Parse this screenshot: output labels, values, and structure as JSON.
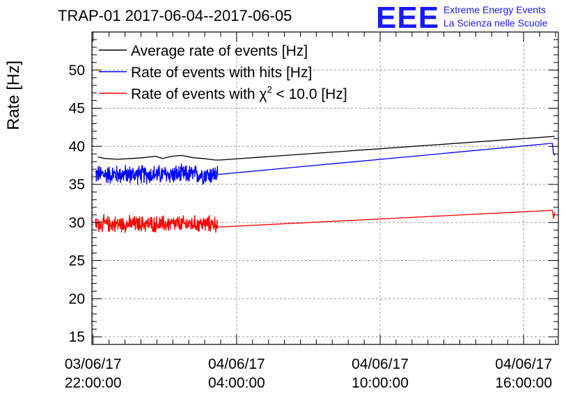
{
  "chart_data": {
    "type": "line",
    "title": "TRAP-01 2017-06-04--2017-06-05",
    "logo": {
      "mark": "EEE",
      "line1": "Extreme Energy Events",
      "line2": "La Scienza nelle Scuole"
    },
    "ylabel": "Rate [Hz]",
    "xlabel": "",
    "ylim": [
      14,
      55
    ],
    "yticks": [
      15,
      20,
      25,
      30,
      35,
      40,
      45,
      50
    ],
    "x_range_hours": [
      21.95,
      17.45
    ],
    "xticks": [
      {
        "hour": 22,
        "date": "03/06/17",
        "time": "22:00:00"
      },
      {
        "hour": 28,
        "date": "04/06/17",
        "time": "04:00:00"
      },
      {
        "hour": 34,
        "date": "04/06/17",
        "time": "10:00:00"
      },
      {
        "hour": 40,
        "date": "04/06/17",
        "time": "16:00:00"
      }
    ],
    "grid": true,
    "legend_position": "top-left",
    "series": [
      {
        "name_main": "Average rate of events [Hz]",
        "color": "#000000",
        "points": [
          [
            22.2,
            38.6
          ],
          [
            22.5,
            38.4
          ],
          [
            23.0,
            38.3
          ],
          [
            23.6,
            38.4
          ],
          [
            24.1,
            38.5
          ],
          [
            24.6,
            38.7
          ],
          [
            24.9,
            38.4
          ],
          [
            25.3,
            38.7
          ],
          [
            25.7,
            38.8
          ],
          [
            26.2,
            38.5
          ],
          [
            26.6,
            38.4
          ],
          [
            27.1,
            38.2
          ],
          [
            27.3,
            38.2
          ],
          [
            41.3,
            41.3
          ]
        ]
      },
      {
        "name_main": "Rate of events with hits [Hz]",
        "color": "#0000ff",
        "noisy_segment": {
          "x_start": 22.1,
          "x_end": 27.2,
          "center": 36.3,
          "amplitude": 1.5,
          "samples": 420
        },
        "points": [
          [
            27.2,
            36.3
          ],
          [
            41.2,
            40.4
          ],
          [
            41.25,
            39.0
          ],
          [
            41.3,
            38.8
          ]
        ]
      },
      {
        "name_main": "Rate of events with χ² < 10.0 [Hz]",
        "name_prefix": "Rate of events with χ",
        "name_sup": "2",
        "name_suffix": " < 10.0 [Hz]",
        "color": "#ff0000",
        "noisy_segment": {
          "x_start": 22.1,
          "x_end": 27.2,
          "center": 29.8,
          "amplitude": 1.3,
          "samples": 420
        },
        "points": [
          [
            27.2,
            29.4
          ],
          [
            41.2,
            31.6
          ],
          [
            41.25,
            30.5
          ],
          [
            41.3,
            31.4
          ]
        ]
      }
    ]
  }
}
